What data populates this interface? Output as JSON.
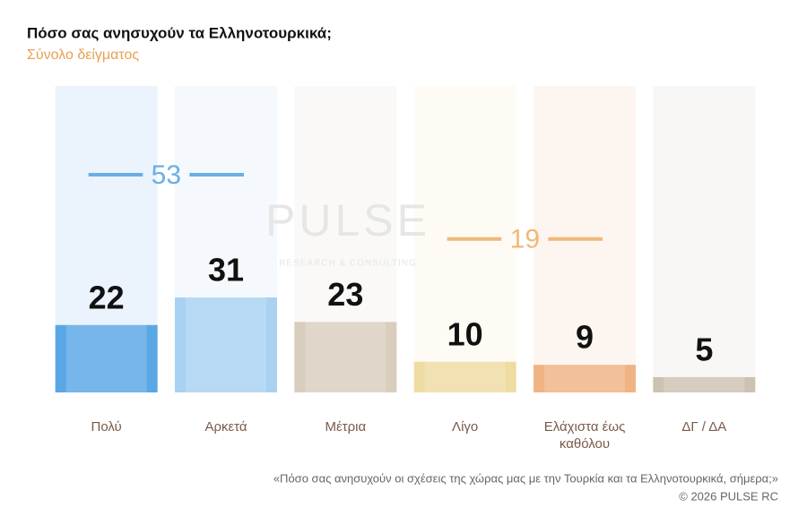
{
  "chart_data": {
    "type": "bar",
    "title": "Πόσο σας ανησυχούν τα Ελληνοτουρκικά;",
    "subtitle": "Σύνολο δείγματος",
    "categories": [
      "Πολύ",
      "Αρκετά",
      "Μέτρια",
      "Λίγο",
      "Ελάχιστα έως καθόλου",
      "ΔΓ / ΔΑ"
    ],
    "values": [
      22,
      31,
      23,
      10,
      9,
      5
    ],
    "colors": [
      "#5aa7e6",
      "#a9d1f2",
      "#d9cdbd",
      "#efdca3",
      "#f0b383",
      "#cdc1b1"
    ],
    "ylim": [
      0,
      100
    ],
    "group_totals": [
      {
        "value": 53,
        "members": [
          "Πολύ",
          "Αρκετά"
        ],
        "color": "#6aaee6"
      },
      {
        "value": 19,
        "members": [
          "Λίγο",
          "Ελάχιστα έως καθόλου"
        ],
        "color": "#f0b87a"
      }
    ],
    "watermark": {
      "name": "PULSE",
      "tagline": "RESEARCH & CONSULTING"
    },
    "footnote": "«Πόσο σας ανησυχούν οι σχέσεις της χώρας μας με την Τουρκία και τα Ελληνοτουρκικά, σήμερα;»",
    "copyright": "©  2026  PULSE RC"
  }
}
